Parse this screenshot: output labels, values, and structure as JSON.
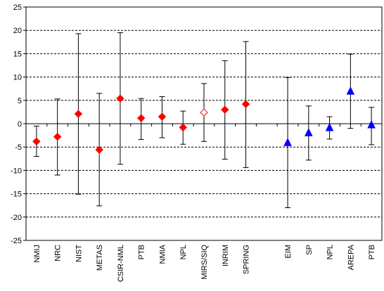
{
  "chart_data": {
    "type": "scatter",
    "title": "",
    "xlabel": "",
    "ylabel": "",
    "ylim": [
      -25,
      25
    ],
    "ytick_step": 5,
    "yticks": [
      "-25",
      "-20",
      "-15",
      "-10",
      "-5",
      "0",
      "5",
      "10",
      "15",
      "20",
      "25"
    ],
    "grid": "horizontal-dashed",
    "legend": "none",
    "error_bars": true,
    "categories": [
      "NMIJ",
      "NRC",
      "NIST",
      "METAS",
      "CSIR-NML",
      "PTB",
      "NMIA",
      "NPL",
      "MIRS/SIQ",
      "INRIM",
      "SPRING",
      "",
      "EIM",
      "SP",
      "NPL",
      "AREPA",
      "PTB"
    ],
    "series": [
      {
        "marker": "diamond",
        "color": "#ff0000",
        "points": [
          {
            "category": "NMIJ",
            "y": -3.8,
            "low": -7.0,
            "high": -0.5,
            "filled": true
          },
          {
            "category": "NRC",
            "y": -2.8,
            "low": -11.0,
            "high": 5.3,
            "filled": true
          },
          {
            "category": "NIST",
            "y": 2.1,
            "low": -15.1,
            "high": 19.3,
            "filled": true
          },
          {
            "category": "METAS",
            "y": -5.6,
            "low": -17.6,
            "high": 6.5,
            "filled": true
          },
          {
            "category": "CSIR-NML",
            "y": 5.4,
            "low": -8.7,
            "high": 19.5,
            "filled": true
          },
          {
            "category": "PTB",
            "y": 1.2,
            "low": -3.4,
            "high": 5.4,
            "filled": true
          },
          {
            "category": "NMIA",
            "y": 1.5,
            "low": -3.0,
            "high": 5.8,
            "filled": true
          },
          {
            "category": "NPL",
            "y": -0.8,
            "low": -4.4,
            "high": 2.7,
            "filled": true
          },
          {
            "category": "MIRS/SIQ",
            "y": 2.4,
            "low": -3.8,
            "high": 8.6,
            "filled": false
          },
          {
            "category": "INRIM",
            "y": 3.0,
            "low": -7.6,
            "high": 13.5,
            "filled": true
          },
          {
            "category": "SPRING",
            "y": 4.2,
            "low": -9.4,
            "high": 17.6,
            "filled": true
          }
        ]
      },
      {
        "marker": "triangle",
        "color": "#0000ff",
        "points": [
          {
            "category": "EIM",
            "y": -4.1,
            "low": -18.0,
            "high": 9.9,
            "filled": true
          },
          {
            "category": "SP",
            "y": -2.0,
            "low": -7.8,
            "high": 3.8,
            "filled": true
          },
          {
            "category": "NPL",
            "y": -0.9,
            "low": -3.3,
            "high": 1.5,
            "filled": true
          },
          {
            "category": "AREPA",
            "y": 6.9,
            "low": -1.0,
            "high": 14.9,
            "filled": true
          },
          {
            "category": "PTB",
            "y": -0.3,
            "low": -4.5,
            "high": 3.5,
            "filled": true
          }
        ]
      }
    ]
  }
}
